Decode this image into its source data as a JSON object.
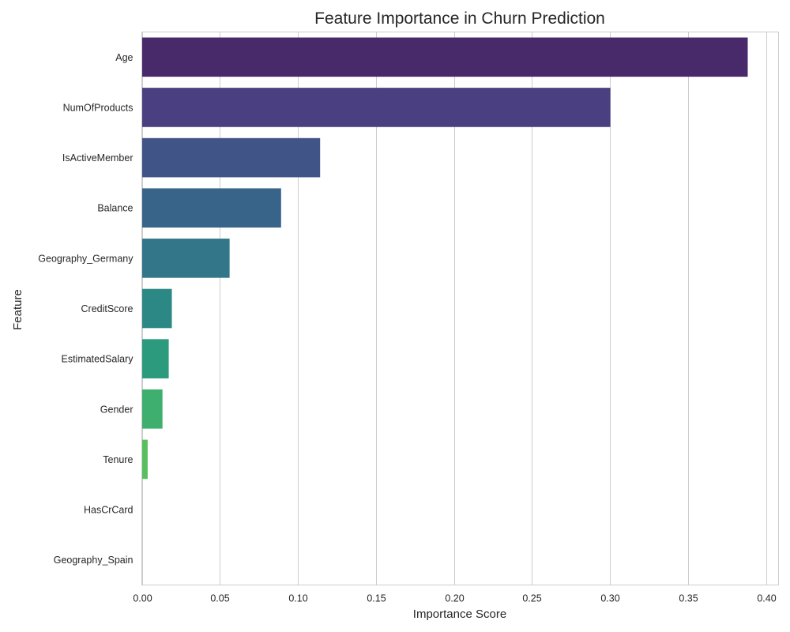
{
  "chart_data": {
    "type": "bar",
    "orientation": "horizontal",
    "title": "Feature Importance in Churn Prediction",
    "xlabel": "Importance Score",
    "ylabel": "Feature",
    "xlim": [
      0,
      0.408
    ],
    "xticks": [
      0.0,
      0.05,
      0.1,
      0.15,
      0.2,
      0.25,
      0.3,
      0.35,
      0.4
    ],
    "xtick_labels": [
      "0.00",
      "0.05",
      "0.10",
      "0.15",
      "0.20",
      "0.25",
      "0.30",
      "0.35",
      "0.40"
    ],
    "grid": "vertical",
    "categories": [
      "Age",
      "NumOfProducts",
      "IsActiveMember",
      "Balance",
      "Geography_Germany",
      "CreditScore",
      "EstimatedSalary",
      "Gender",
      "Tenure",
      "HasCrCard",
      "Geography_Spain"
    ],
    "values": [
      0.388,
      0.3,
      0.114,
      0.089,
      0.056,
      0.019,
      0.017,
      0.013,
      0.0035,
      0.0,
      0.0
    ],
    "colors": [
      "#482a6b",
      "#4a3f80",
      "#415487",
      "#39648a",
      "#33768a",
      "#2c8885",
      "#2b9a7d",
      "#3faf6f",
      "#58bf5e",
      "#8cd04a",
      "#c6de3a"
    ]
  }
}
